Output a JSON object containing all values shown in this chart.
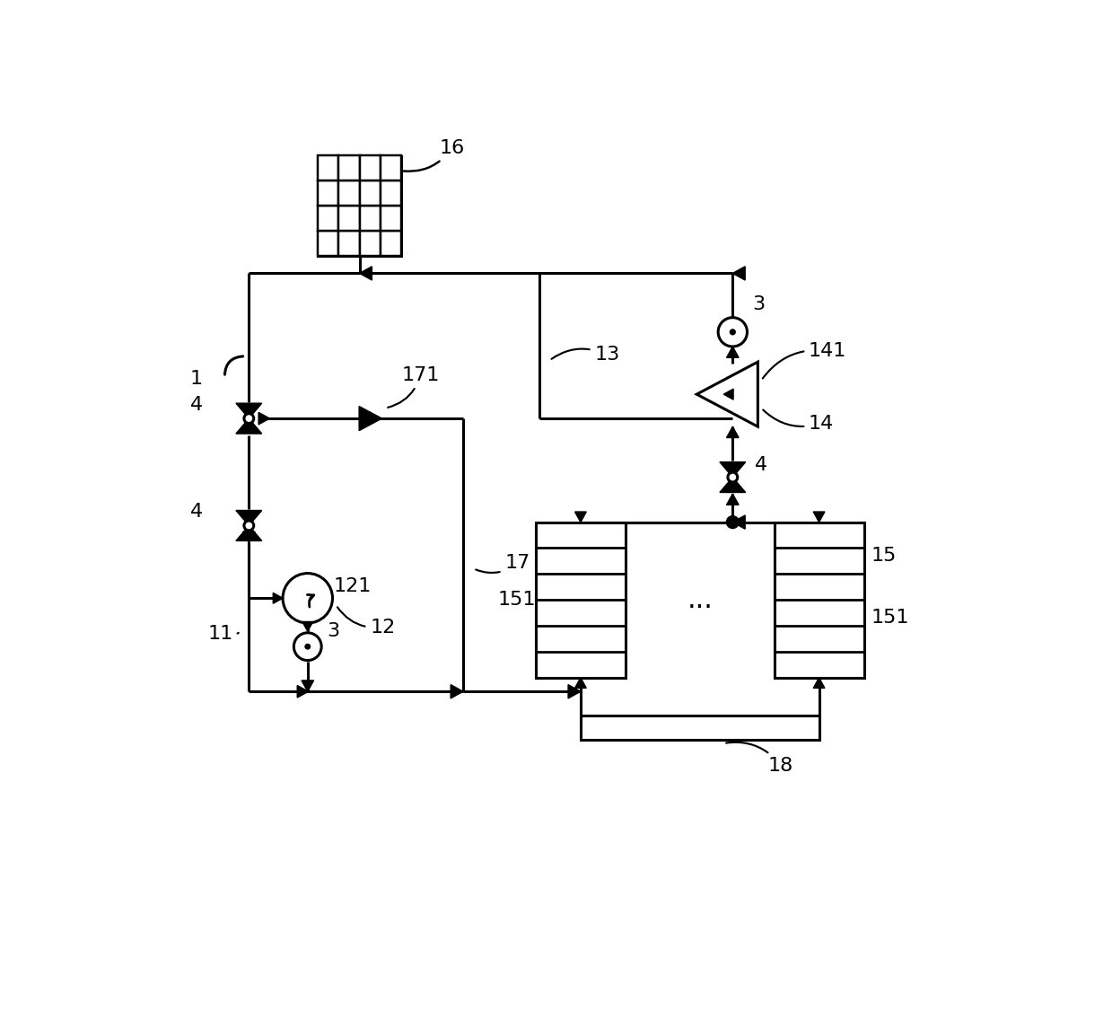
{
  "bg_color": "#ffffff",
  "line_color": "#000000",
  "lw": 2.2,
  "fs": 16,
  "figsize": [
    12.39,
    11.25
  ],
  "dpi": 100,
  "xlim": [
    0,
    12.39
  ],
  "ylim": [
    0,
    11.25
  ],
  "label_1": "1",
  "label_3": "3",
  "label_4": "4",
  "label_11": "11",
  "label_12": "12",
  "label_13": "13",
  "label_14": "14",
  "label_141": "141",
  "label_15": "15",
  "label_151": "151",
  "label_16": "16",
  "label_17": "17",
  "label_171": "171",
  "label_18": "18",
  "label_121": "121"
}
